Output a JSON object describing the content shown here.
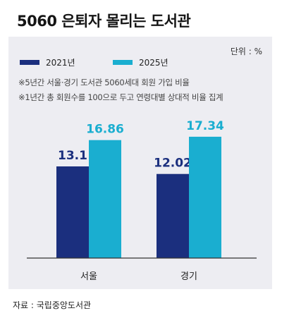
{
  "title": "5060 은퇴자 몰리는 도서관",
  "unit_label": "단위 : %",
  "notes": [
    "※5년간 서울·경기 도서관 5060세대 회원 가입 비율",
    "※1년간 총 회원수를 100으로 두고 연령대별 상대적 비율 집계"
  ],
  "source": "자료 : 국립중앙도서관",
  "colors": {
    "series_2021": "#1b2f7e",
    "series_2025": "#1aaed0",
    "panel": "#ededf2"
  },
  "chart_data": {
    "type": "bar",
    "categories": [
      "서울",
      "경기"
    ],
    "series": [
      {
        "name": "2021년",
        "values": [
          13.1,
          12.02
        ],
        "labels": [
          "13.1",
          "12.02"
        ]
      },
      {
        "name": "2025년",
        "values": [
          16.86,
          17.34
        ],
        "labels": [
          "16.86",
          "17.34"
        ]
      }
    ],
    "ylim": [
      0,
      20
    ],
    "grid": false,
    "legend": "top-left"
  }
}
